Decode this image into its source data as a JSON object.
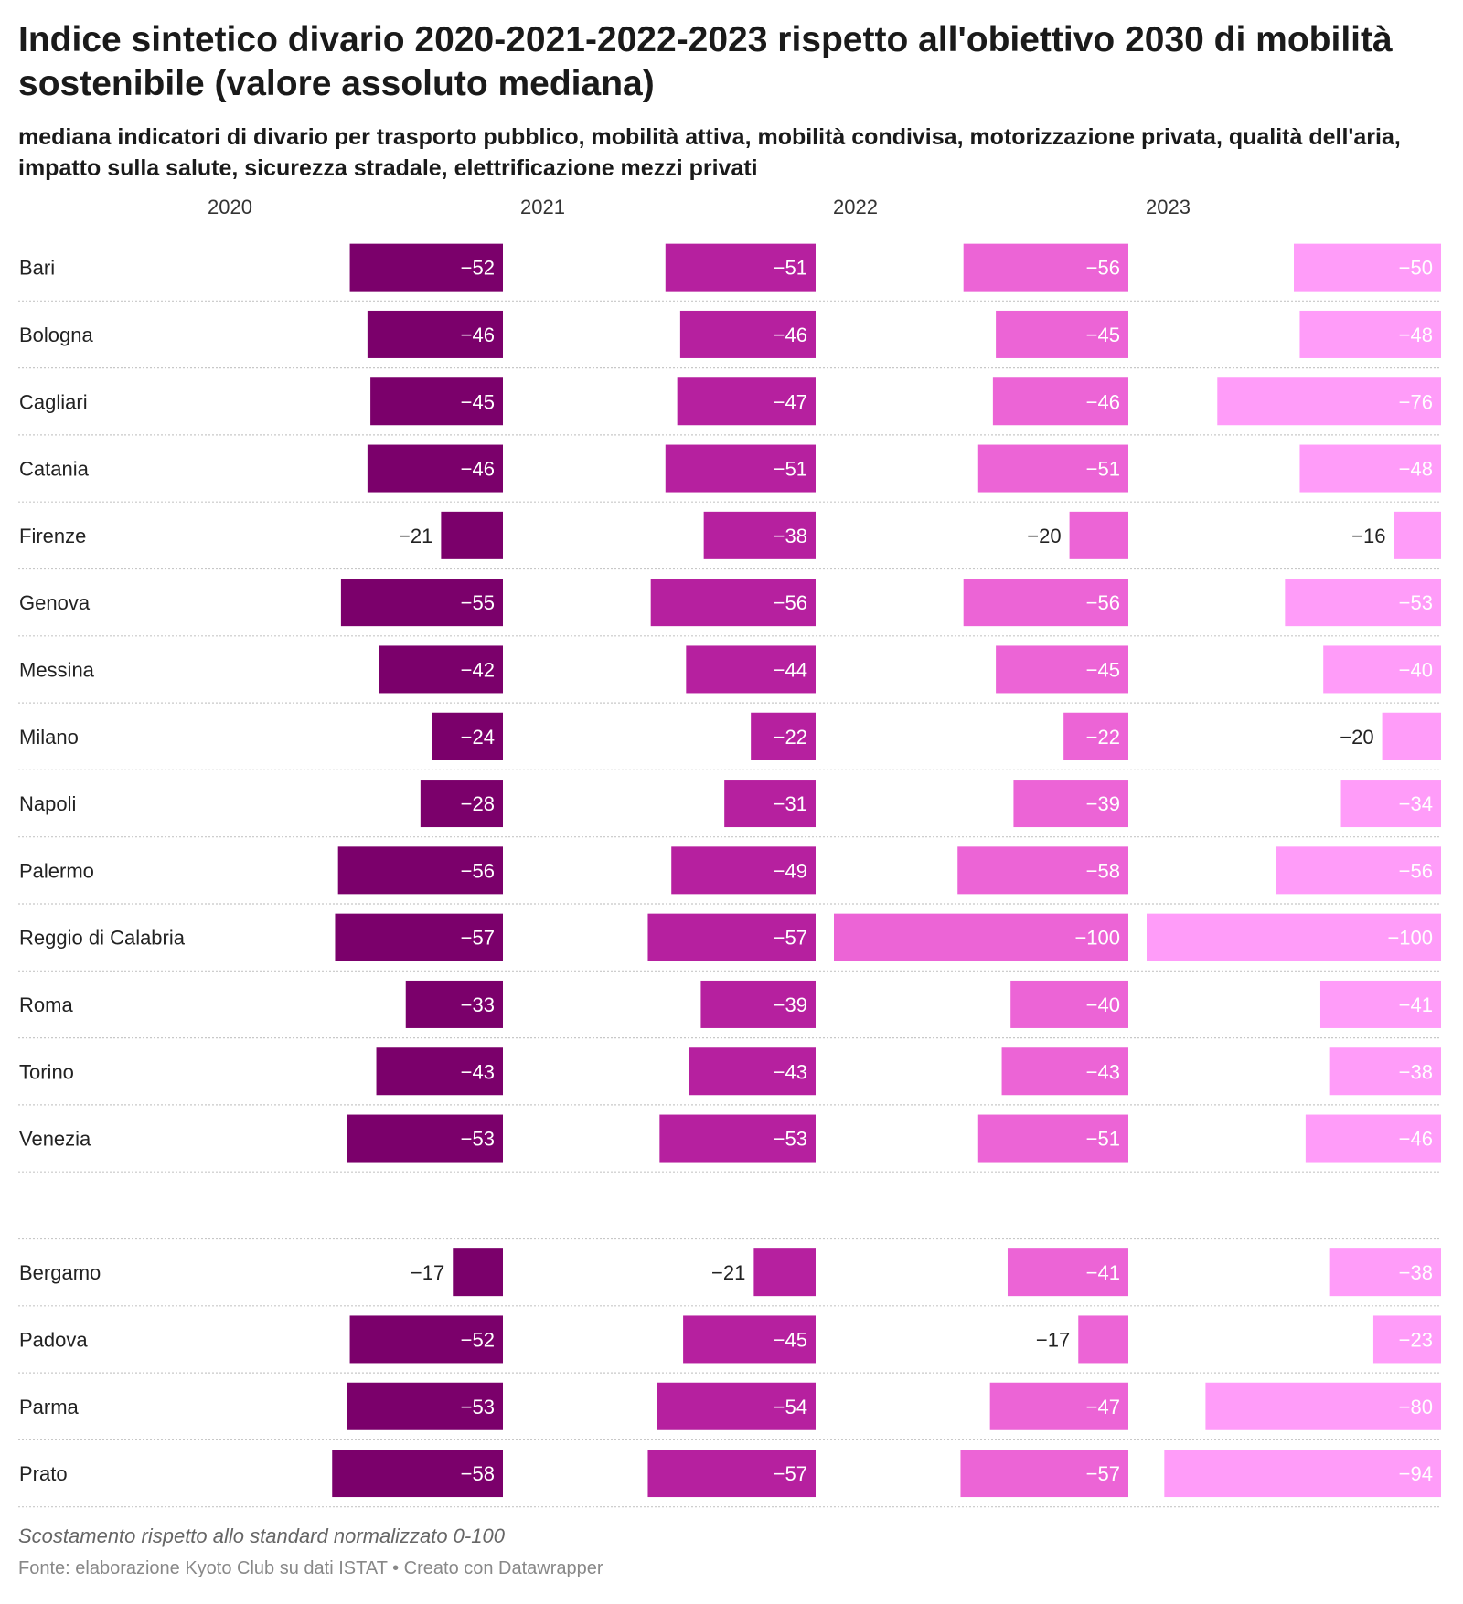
{
  "title": "Indice sintetico divario 2020-2021-2022-2023 rispetto all'obiettivo 2030 di mobilità sostenibile (valore assoluto mediana)",
  "subtitle": "mediana indicatori di divario per trasporto pubblico, mobilità attiva, mobilità condivisa, motorizzazione privata, qualità dell'aria, impatto sulla salute, sicurezza stradale, elettrificazione mezzi privati",
  "notes": "Scostamento rispetto allo standard normalizzato 0-100",
  "footer": "Fonte: elaborazione Kyoto Club su dati ISTAT • Creato con Datawrapper",
  "chart_data": {
    "type": "bar",
    "orientation": "horizontal",
    "grid": false,
    "xlim": [
      -100,
      0
    ],
    "columns": [
      "2020",
      "2021",
      "2022",
      "2023"
    ],
    "colors": [
      "#7b006b",
      "#b6209f",
      "#ec64d6",
      "#ff9cf9"
    ],
    "groups": [
      {
        "rows": [
          {
            "label": "Bari",
            "values": [
              -52,
              -51,
              -56,
              -50
            ]
          },
          {
            "label": "Bologna",
            "values": [
              -46,
              -46,
              -45,
              -48
            ]
          },
          {
            "label": "Cagliari",
            "values": [
              -45,
              -47,
              -46,
              -76
            ]
          },
          {
            "label": "Catania",
            "values": [
              -46,
              -51,
              -51,
              -48
            ]
          },
          {
            "label": "Firenze",
            "values": [
              -21,
              -38,
              -20,
              -16
            ]
          },
          {
            "label": "Genova",
            "values": [
              -55,
              -56,
              -56,
              -53
            ]
          },
          {
            "label": "Messina",
            "values": [
              -42,
              -44,
              -45,
              -40
            ]
          },
          {
            "label": "Milano",
            "values": [
              -24,
              -22,
              -22,
              -20
            ]
          },
          {
            "label": "Napoli",
            "values": [
              -28,
              -31,
              -39,
              -34
            ]
          },
          {
            "label": "Palermo",
            "values": [
              -56,
              -49,
              -58,
              -56
            ]
          },
          {
            "label": "Reggio di Calabria",
            "values": [
              -57,
              -57,
              -100,
              -100
            ]
          },
          {
            "label": "Roma",
            "values": [
              -33,
              -39,
              -40,
              -41
            ]
          },
          {
            "label": "Torino",
            "values": [
              -43,
              -43,
              -43,
              -38
            ]
          },
          {
            "label": "Venezia",
            "values": [
              -53,
              -53,
              -51,
              -46
            ]
          }
        ]
      },
      {
        "rows": [
          {
            "label": "Bergamo",
            "values": [
              -17,
              -21,
              -41,
              -38
            ]
          },
          {
            "label": "Padova",
            "values": [
              -52,
              -45,
              -17,
              -23
            ]
          },
          {
            "label": "Parma",
            "values": [
              -53,
              -54,
              -47,
              -80
            ]
          },
          {
            "label": "Prato",
            "values": [
              -58,
              -57,
              -57,
              -94
            ]
          }
        ]
      }
    ]
  }
}
